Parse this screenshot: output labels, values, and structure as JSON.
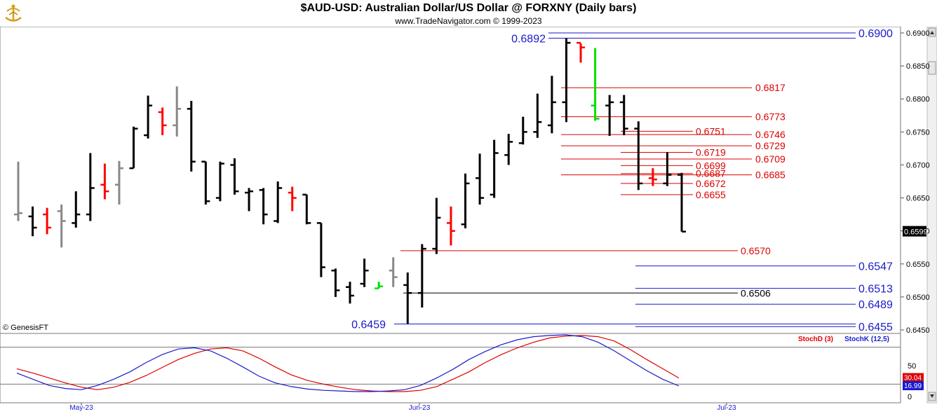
{
  "header": {
    "title": "$AUD-USD:  Australian Dollar/US Dollar @ FORXNY  (Daily bars)",
    "subtitle": "www.TradeNavigator.com © 1999-2023",
    "watermark": "© GenesisFT"
  },
  "colors": {
    "up": "#000000",
    "down": "#ff0000",
    "neutral": "#888888",
    "green": "#00e000",
    "blue_level": "#1a1acc",
    "red_level": "#dd0000",
    "stochD": "#dd0000",
    "stochK": "#1a1acc"
  },
  "chart_data": [
    {
      "type": "ohlc",
      "title": "$AUD-USD:  Australian Dollar/US Dollar @ FORXNY  (Daily bars)",
      "ylim": [
        0.6445,
        0.6912
      ],
      "price_ticks": [
        "0.6900",
        "0.6850",
        "0.6800",
        "0.6750",
        "0.6700",
        "0.6650",
        "0.6600",
        "0.6550",
        "0.6500",
        "0.6450"
      ],
      "current_price": "0.6599",
      "date_ticks": [
        "May-23",
        "Jun-23",
        "Jul-23"
      ],
      "bars": [
        {
          "o": 0.6625,
          "h": 0.6705,
          "l": 0.6615,
          "c": 0.6627,
          "col": "neutral"
        },
        {
          "o": 0.6622,
          "h": 0.6637,
          "l": 0.6592,
          "c": 0.6605,
          "col": "up"
        },
        {
          "o": 0.6625,
          "h": 0.6635,
          "l": 0.6595,
          "c": 0.6605,
          "col": "down"
        },
        {
          "o": 0.663,
          "h": 0.664,
          "l": 0.6575,
          "c": 0.6615,
          "col": "neutral"
        },
        {
          "o": 0.6612,
          "h": 0.666,
          "l": 0.6605,
          "c": 0.6625,
          "col": "up"
        },
        {
          "o": 0.6625,
          "h": 0.6718,
          "l": 0.6615,
          "c": 0.6665,
          "col": "up"
        },
        {
          "o": 0.667,
          "h": 0.6702,
          "l": 0.6648,
          "c": 0.666,
          "col": "down"
        },
        {
          "o": 0.667,
          "h": 0.6706,
          "l": 0.664,
          "c": 0.6695,
          "col": "neutral"
        },
        {
          "o": 0.6695,
          "h": 0.6758,
          "l": 0.6695,
          "c": 0.6755,
          "col": "up"
        },
        {
          "o": 0.6745,
          "h": 0.6805,
          "l": 0.674,
          "c": 0.679,
          "col": "up"
        },
        {
          "o": 0.678,
          "h": 0.6787,
          "l": 0.6745,
          "c": 0.676,
          "col": "down"
        },
        {
          "o": 0.676,
          "h": 0.6819,
          "l": 0.6743,
          "c": 0.6785,
          "col": "neutral"
        },
        {
          "o": 0.6785,
          "h": 0.6797,
          "l": 0.669,
          "c": 0.6705,
          "col": "up"
        },
        {
          "o": 0.6705,
          "h": 0.6705,
          "l": 0.664,
          "c": 0.6645,
          "col": "up"
        },
        {
          "o": 0.665,
          "h": 0.6705,
          "l": 0.6645,
          "c": 0.6702,
          "col": "up"
        },
        {
          "o": 0.67,
          "h": 0.671,
          "l": 0.6655,
          "c": 0.666,
          "col": "up"
        },
        {
          "o": 0.6658,
          "h": 0.6665,
          "l": 0.663,
          "c": 0.666,
          "col": "up"
        },
        {
          "o": 0.6662,
          "h": 0.6665,
          "l": 0.661,
          "c": 0.6625,
          "col": "up"
        },
        {
          "o": 0.6615,
          "h": 0.6675,
          "l": 0.6612,
          "c": 0.6665,
          "col": "up"
        },
        {
          "o": 0.6658,
          "h": 0.6667,
          "l": 0.663,
          "c": 0.665,
          "col": "down"
        },
        {
          "o": 0.6655,
          "h": 0.6655,
          "l": 0.661,
          "c": 0.6612,
          "col": "up"
        },
        {
          "o": 0.6612,
          "h": 0.6612,
          "l": 0.653,
          "c": 0.6545,
          "col": "up"
        },
        {
          "o": 0.654,
          "h": 0.6543,
          "l": 0.65,
          "c": 0.651,
          "col": "up"
        },
        {
          "o": 0.6515,
          "h": 0.6523,
          "l": 0.649,
          "c": 0.6502,
          "col": "up"
        },
        {
          "o": 0.652,
          "h": 0.6558,
          "l": 0.6515,
          "c": 0.654,
          "col": "up"
        },
        {
          "o": 0.6513,
          "h": 0.6523,
          "l": 0.6513,
          "c": 0.6516,
          "col": "green"
        },
        {
          "o": 0.654,
          "h": 0.656,
          "l": 0.6515,
          "c": 0.653,
          "col": "neutral"
        },
        {
          "o": 0.6518,
          "h": 0.6537,
          "l": 0.6459,
          "c": 0.6506,
          "col": "up"
        },
        {
          "o": 0.6506,
          "h": 0.658,
          "l": 0.6484,
          "c": 0.6573,
          "col": "up"
        },
        {
          "o": 0.6573,
          "h": 0.665,
          "l": 0.6565,
          "c": 0.662,
          "col": "up"
        },
        {
          "o": 0.6612,
          "h": 0.6637,
          "l": 0.6578,
          "c": 0.66,
          "col": "down"
        },
        {
          "o": 0.661,
          "h": 0.6687,
          "l": 0.6604,
          "c": 0.6672,
          "col": "up"
        },
        {
          "o": 0.668,
          "h": 0.6717,
          "l": 0.664,
          "c": 0.665,
          "col": "up"
        },
        {
          "o": 0.6655,
          "h": 0.6738,
          "l": 0.665,
          "c": 0.6718,
          "col": "up"
        },
        {
          "o": 0.6715,
          "h": 0.6747,
          "l": 0.67,
          "c": 0.6735,
          "col": "up"
        },
        {
          "o": 0.6733,
          "h": 0.6773,
          "l": 0.6731,
          "c": 0.675,
          "col": "up"
        },
        {
          "o": 0.675,
          "h": 0.6808,
          "l": 0.6741,
          "c": 0.6765,
          "col": "up"
        },
        {
          "o": 0.676,
          "h": 0.6835,
          "l": 0.6748,
          "c": 0.6795,
          "col": "up"
        },
        {
          "o": 0.6795,
          "h": 0.6892,
          "l": 0.6765,
          "c": 0.6885,
          "col": "up"
        },
        {
          "o": 0.6885,
          "h": 0.6884,
          "l": 0.6855,
          "c": 0.6878,
          "col": "down"
        },
        {
          "o": 0.679,
          "h": 0.6877,
          "l": 0.6767,
          "c": 0.677,
          "col": "green"
        },
        {
          "o": 0.679,
          "h": 0.6806,
          "l": 0.6744,
          "c": 0.6795,
          "col": "up"
        },
        {
          "o": 0.6795,
          "h": 0.6806,
          "l": 0.6745,
          "c": 0.6755,
          "col": "up"
        },
        {
          "o": 0.6755,
          "h": 0.6766,
          "l": 0.6662,
          "c": 0.6672,
          "col": "up"
        },
        {
          "o": 0.668,
          "h": 0.6695,
          "l": 0.6668,
          "c": 0.6678,
          "col": "down"
        },
        {
          "o": 0.6672,
          "h": 0.6719,
          "l": 0.6668,
          "c": 0.6685,
          "col": "up"
        },
        {
          "o": 0.6685,
          "h": 0.6688,
          "l": 0.6599,
          "c": 0.6599,
          "col": "up"
        }
      ],
      "levels": [
        {
          "label": "0.6900",
          "v": 0.69,
          "col": "blue_level",
          "side": "right"
        },
        {
          "label": "0.6892",
          "v": 0.6892,
          "col": "blue_level",
          "side": "left-top"
        },
        {
          "label": "0.6817",
          "v": 0.6817,
          "col": "red_level",
          "side": "mid"
        },
        {
          "label": "0.6773",
          "v": 0.6773,
          "col": "red_level",
          "side": "mid"
        },
        {
          "label": "0.6751",
          "v": 0.6751,
          "col": "red_level",
          "side": "inner"
        },
        {
          "label": "0.6746",
          "v": 0.6746,
          "col": "red_level",
          "side": "mid"
        },
        {
          "label": "0.6729",
          "v": 0.6729,
          "col": "red_level",
          "side": "mid"
        },
        {
          "label": "0.6719",
          "v": 0.6719,
          "col": "red_level",
          "side": "inner"
        },
        {
          "label": "0.6709",
          "v": 0.6709,
          "col": "red_level",
          "side": "mid"
        },
        {
          "label": "0.6699",
          "v": 0.6699,
          "col": "red_level",
          "side": "inner"
        },
        {
          "label": "0.6687",
          "v": 0.6687,
          "col": "red_level",
          "side": "inner"
        },
        {
          "label": "0.6685",
          "v": 0.6685,
          "col": "red_level",
          "side": "mid"
        },
        {
          "label": "0.6672",
          "v": 0.6672,
          "col": "red_level",
          "side": "inner"
        },
        {
          "label": "0.6655",
          "v": 0.6655,
          "col": "red_level",
          "side": "inner"
        },
        {
          "label": "0.6570",
          "v": 0.657,
          "col": "red_level",
          "side": "low"
        },
        {
          "label": "0.6547",
          "v": 0.6547,
          "col": "blue_level",
          "side": "right"
        },
        {
          "label": "0.6513",
          "v": 0.6513,
          "col": "blue_level",
          "side": "right"
        },
        {
          "label": "0.6506",
          "v": 0.6506,
          "col": "black",
          "side": "black"
        },
        {
          "label": "0.6489",
          "v": 0.6489,
          "col": "blue_level",
          "side": "right"
        },
        {
          "label": "0.6459",
          "v": 0.6459,
          "col": "blue_level",
          "side": "left-bottom"
        },
        {
          "label": "0.6455",
          "v": 0.6455,
          "col": "blue_level",
          "side": "right"
        }
      ]
    },
    {
      "type": "line",
      "series": [
        {
          "name": "StochD (3)",
          "label": "30.04",
          "values": [
            45,
            38,
            30,
            22,
            15,
            11,
            15,
            23,
            34,
            47,
            60,
            70,
            77,
            79,
            74,
            62,
            48,
            35,
            26,
            20,
            15,
            11,
            9,
            8,
            8,
            10,
            16,
            28,
            40,
            55,
            68,
            79,
            88,
            95,
            98,
            99,
            97,
            90,
            76,
            60,
            45,
            30
          ]
        },
        {
          "name": "StochK (12,5)",
          "label": "16.99",
          "values": [
            38,
            28,
            18,
            13,
            11,
            18,
            28,
            40,
            55,
            68,
            77,
            79,
            74,
            62,
            48,
            33,
            22,
            16,
            12,
            10,
            9,
            8,
            8,
            9,
            11,
            18,
            30,
            44,
            60,
            73,
            84,
            92,
            97,
            99,
            100,
            97,
            88,
            74,
            58,
            42,
            28,
            17
          ]
        }
      ],
      "ylim": [
        0,
        100
      ],
      "ticks": [
        "50",
        "0"
      ],
      "gridlines": [
        80,
        20
      ]
    }
  ]
}
